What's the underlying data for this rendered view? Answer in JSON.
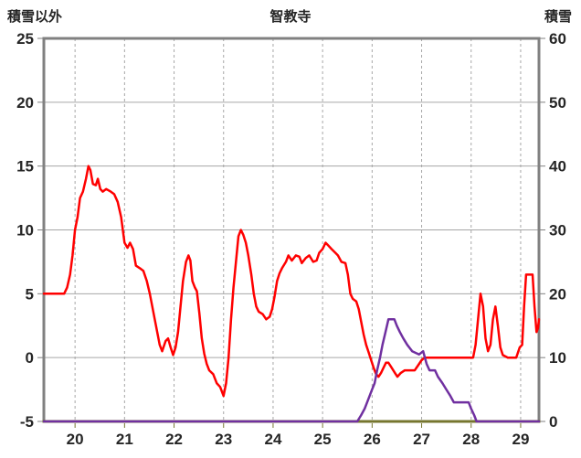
{
  "header": {
    "left_axis_title": "積雪以外",
    "title": "智教寺",
    "right_axis_title": "積雪"
  },
  "chart_data": {
    "type": "line",
    "title": "智教寺",
    "legend": "none",
    "grid": "on",
    "colors": {
      "series_red": "#FF0000",
      "series_purple": "#7030A0",
      "grid": "#A6A6A6",
      "border": "#808080",
      "x_axis": "#76762F",
      "text": "#262626"
    },
    "x_axis": {
      "min": 19.37,
      "max": 29.37,
      "ticks": [
        20,
        21,
        22,
        23,
        24,
        25,
        26,
        27,
        28,
        29
      ]
    },
    "left_axis": {
      "label": "積雪以外",
      "min": -5,
      "max": 25,
      "ticks": [
        -5,
        0,
        5,
        10,
        15,
        20,
        25
      ]
    },
    "right_axis": {
      "label": "積雪",
      "min": 0,
      "max": 60,
      "ticks": [
        0,
        10,
        20,
        30,
        40,
        50,
        60
      ]
    },
    "series": [
      {
        "id": "sekisetsu-igai",
        "name": "積雪以外",
        "axis": "left",
        "color": "#FF0000",
        "points": [
          [
            19.37,
            5
          ],
          [
            19.78,
            5
          ],
          [
            19.84,
            5.5
          ],
          [
            19.9,
            6.5
          ],
          [
            19.95,
            8
          ],
          [
            20.0,
            10
          ],
          [
            20.05,
            11
          ],
          [
            20.1,
            12.5
          ],
          [
            20.16,
            13
          ],
          [
            20.22,
            14
          ],
          [
            20.27,
            15
          ],
          [
            20.31,
            14.7
          ],
          [
            20.36,
            13.6
          ],
          [
            20.42,
            13.5
          ],
          [
            20.46,
            14
          ],
          [
            20.51,
            13.2
          ],
          [
            20.56,
            13
          ],
          [
            20.63,
            13.2
          ],
          [
            20.72,
            13
          ],
          [
            20.79,
            12.8
          ],
          [
            20.86,
            12.2
          ],
          [
            20.93,
            11
          ],
          [
            21.0,
            9
          ],
          [
            21.06,
            8.6
          ],
          [
            21.11,
            9
          ],
          [
            21.17,
            8.5
          ],
          [
            21.23,
            7.2
          ],
          [
            21.31,
            7
          ],
          [
            21.38,
            6.8
          ],
          [
            21.45,
            6
          ],
          [
            21.51,
            5
          ],
          [
            21.56,
            4
          ],
          [
            21.61,
            3
          ],
          [
            21.66,
            2
          ],
          [
            21.71,
            1
          ],
          [
            21.76,
            0.5
          ],
          [
            21.83,
            1.3
          ],
          [
            21.88,
            1.5
          ],
          [
            21.93,
            0.8
          ],
          [
            21.98,
            0.2
          ],
          [
            22.03,
            0.8
          ],
          [
            22.08,
            2
          ],
          [
            22.13,
            4
          ],
          [
            22.18,
            6
          ],
          [
            22.24,
            7.5
          ],
          [
            22.29,
            8
          ],
          [
            22.33,
            7.6
          ],
          [
            22.37,
            6
          ],
          [
            22.42,
            5.5
          ],
          [
            22.46,
            5.2
          ],
          [
            22.51,
            3.5
          ],
          [
            22.56,
            1.5
          ],
          [
            22.61,
            0.3
          ],
          [
            22.66,
            -0.5
          ],
          [
            22.71,
            -1
          ],
          [
            22.79,
            -1.3
          ],
          [
            22.86,
            -2
          ],
          [
            22.93,
            -2.3
          ],
          [
            23.0,
            -3
          ],
          [
            23.05,
            -2
          ],
          [
            23.1,
            0
          ],
          [
            23.15,
            3
          ],
          [
            23.2,
            5.5
          ],
          [
            23.25,
            7.5
          ],
          [
            23.3,
            9.5
          ],
          [
            23.35,
            10
          ],
          [
            23.4,
            9.6
          ],
          [
            23.45,
            9
          ],
          [
            23.5,
            8
          ],
          [
            23.56,
            6.5
          ],
          [
            23.61,
            5
          ],
          [
            23.66,
            4
          ],
          [
            23.71,
            3.6
          ],
          [
            23.79,
            3.4
          ],
          [
            23.86,
            3
          ],
          [
            23.93,
            3.2
          ],
          [
            23.98,
            3.8
          ],
          [
            24.03,
            4.8
          ],
          [
            24.08,
            6
          ],
          [
            24.13,
            6.6
          ],
          [
            24.18,
            7
          ],
          [
            24.26,
            7.5
          ],
          [
            24.31,
            8
          ],
          [
            24.38,
            7.6
          ],
          [
            24.46,
            8
          ],
          [
            24.53,
            7.9
          ],
          [
            24.58,
            7.4
          ],
          [
            24.66,
            7.8
          ],
          [
            24.73,
            8
          ],
          [
            24.81,
            7.5
          ],
          [
            24.88,
            7.6
          ],
          [
            24.93,
            8.2
          ],
          [
            25.0,
            8.5
          ],
          [
            25.06,
            9
          ],
          [
            25.11,
            8.8
          ],
          [
            25.18,
            8.5
          ],
          [
            25.26,
            8.2
          ],
          [
            25.31,
            8
          ],
          [
            25.38,
            7.5
          ],
          [
            25.46,
            7.4
          ],
          [
            25.51,
            6.5
          ],
          [
            25.56,
            5
          ],
          [
            25.61,
            4.6
          ],
          [
            25.68,
            4.4
          ],
          [
            25.73,
            3.8
          ],
          [
            25.78,
            2.8
          ],
          [
            25.83,
            1.8
          ],
          [
            25.88,
            1
          ],
          [
            25.93,
            0.4
          ],
          [
            25.98,
            -0.2
          ],
          [
            26.03,
            -0.8
          ],
          [
            26.08,
            -1.3
          ],
          [
            26.13,
            -1.5
          ],
          [
            26.18,
            -1.2
          ],
          [
            26.23,
            -0.8
          ],
          [
            26.28,
            -0.4
          ],
          [
            26.33,
            -0.4
          ],
          [
            26.38,
            -0.7
          ],
          [
            26.46,
            -1.2
          ],
          [
            26.51,
            -1.5
          ],
          [
            26.58,
            -1.2
          ],
          [
            26.66,
            -1
          ],
          [
            26.76,
            -1
          ],
          [
            26.86,
            -1
          ],
          [
            26.93,
            -0.6
          ],
          [
            27.0,
            -0.2
          ],
          [
            27.06,
            0
          ],
          [
            27.3,
            0
          ],
          [
            27.6,
            0
          ],
          [
            27.9,
            0
          ],
          [
            28.04,
            0
          ],
          [
            28.09,
            1
          ],
          [
            28.14,
            3
          ],
          [
            28.19,
            5
          ],
          [
            28.24,
            4
          ],
          [
            28.29,
            1.5
          ],
          [
            28.34,
            0.5
          ],
          [
            28.39,
            1
          ],
          [
            28.44,
            3
          ],
          [
            28.49,
            4
          ],
          [
            28.54,
            2.5
          ],
          [
            28.59,
            0.8
          ],
          [
            28.64,
            0.2
          ],
          [
            28.74,
            0
          ],
          [
            28.91,
            0
          ],
          [
            28.98,
            0.8
          ],
          [
            29.03,
            1
          ],
          [
            29.07,
            4
          ],
          [
            29.11,
            6.5
          ],
          [
            29.18,
            6.5
          ],
          [
            29.24,
            6.5
          ],
          [
            29.28,
            4
          ],
          [
            29.32,
            2
          ],
          [
            29.35,
            2.3
          ],
          [
            29.37,
            3
          ]
        ]
      },
      {
        "id": "sekisetsu",
        "name": "積雪",
        "axis": "right",
        "color": "#7030A0",
        "points": [
          [
            19.37,
            0
          ],
          [
            25.7,
            0
          ],
          [
            25.78,
            1
          ],
          [
            25.85,
            2
          ],
          [
            25.9,
            3
          ],
          [
            25.95,
            4
          ],
          [
            26.0,
            5
          ],
          [
            26.05,
            6
          ],
          [
            26.1,
            8
          ],
          [
            26.16,
            10
          ],
          [
            26.21,
            12
          ],
          [
            26.27,
            14
          ],
          [
            26.33,
            16
          ],
          [
            26.45,
            16
          ],
          [
            26.5,
            15
          ],
          [
            26.56,
            14
          ],
          [
            26.63,
            13
          ],
          [
            26.71,
            12
          ],
          [
            26.81,
            11
          ],
          [
            26.95,
            10.5
          ],
          [
            27.03,
            11
          ],
          [
            27.1,
            9
          ],
          [
            27.16,
            8
          ],
          [
            27.27,
            8
          ],
          [
            27.33,
            7
          ],
          [
            27.42,
            6
          ],
          [
            27.5,
            5
          ],
          [
            27.58,
            4
          ],
          [
            27.65,
            3
          ],
          [
            27.95,
            3
          ],
          [
            28.0,
            2
          ],
          [
            28.06,
            1
          ],
          [
            28.11,
            0
          ],
          [
            29.37,
            0
          ]
        ]
      }
    ]
  }
}
